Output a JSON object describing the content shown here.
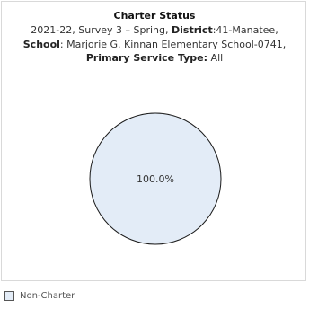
{
  "chart_data": {
    "type": "pie",
    "title": "Charter Status",
    "subtitle": {
      "year": "2021-22",
      "survey": "Survey 3 – Spring",
      "district_label": "District",
      "district_value": "41-Manatee",
      "school_label": "School",
      "school_value": "Marjorie G. Kinnan Elementary School-0741",
      "service_type_label": "Primary Service Type:",
      "service_type_value": "All"
    },
    "slices": [
      {
        "label": "Non-Charter",
        "value": 100.0,
        "display": "100.0%",
        "color": "#e3ecf7",
        "stroke": "#1a1a1a"
      }
    ],
    "legend": {
      "placement": "bottom-left"
    }
  }
}
